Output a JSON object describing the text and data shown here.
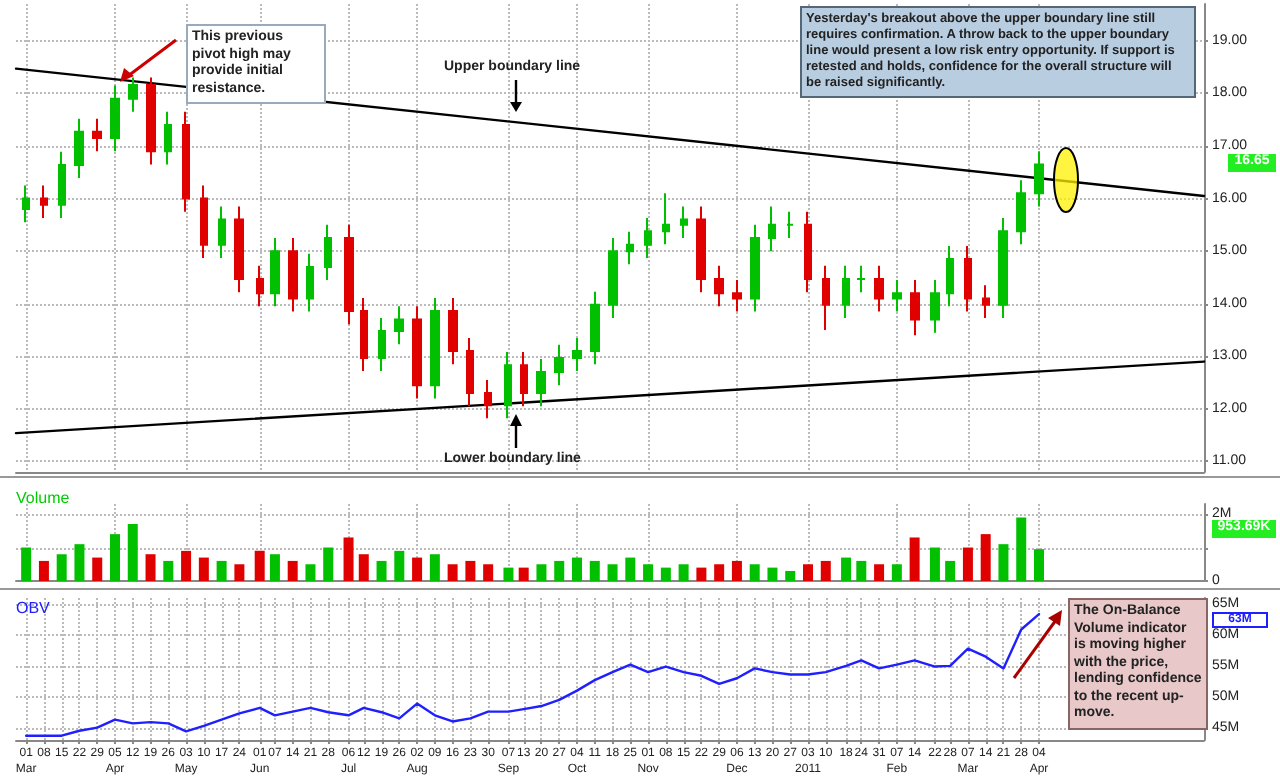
{
  "chart_data": [
    {
      "type": "candlestick",
      "grid": true,
      "tick_labels": "y",
      "line_style": "solid",
      "xlim": [
        "2010-02-25",
        "2011-06-08"
      ],
      "xticks": [
        {
          "value": "2010-03-01",
          "label": null
        },
        {
          "value": "2010-04-05",
          "label": null
        },
        {
          "value": "2010-05-03",
          "label": null
        },
        {
          "value": "2010-06-01",
          "label": null
        },
        {
          "value": "2010-07-06",
          "label": null
        },
        {
          "value": "2010-08-02",
          "label": null
        },
        {
          "value": "2010-09-07",
          "label": null
        },
        {
          "value": "2010-10-04",
          "label": null
        },
        {
          "value": "2010-11-01",
          "label": null
        },
        {
          "value": "2010-12-06",
          "label": null
        },
        {
          "value": "2011-01-03",
          "label": null
        },
        {
          "value": "2011-02-07",
          "label": null
        },
        {
          "value": "2011-03-07",
          "label": null
        },
        {
          "value": "2011-04-04",
          "label": null
        }
      ],
      "ylim": [
        10.8,
        19.7
      ],
      "yticks": [
        {
          "value": 11,
          "label": "11.00"
        },
        {
          "value": 12,
          "label": "12.00"
        },
        {
          "value": 13,
          "label": "13.00"
        },
        {
          "value": 14,
          "label": "14.00"
        },
        {
          "value": 15,
          "label": "15.00"
        },
        {
          "value": 16,
          "label": "16.00"
        },
        {
          "value": 17,
          "label": "17.00"
        },
        {
          "value": 18,
          "label": "18.00"
        },
        {
          "value": 19,
          "label": "19.00"
        }
      ],
      "series": [
        {
          "type": "candlestick",
          "x": [
            "2010-03-01",
            "2010-03-08",
            "2010-03-15",
            "2010-03-22",
            "2010-03-29",
            "2010-04-05",
            "2010-04-12",
            "2010-04-19",
            "2010-04-26",
            "2010-05-03",
            "2010-05-10",
            "2010-05-17",
            "2010-05-24",
            "2010-06-01",
            "2010-06-07",
            "2010-06-14",
            "2010-06-21",
            "2010-06-28",
            "2010-07-06",
            "2010-07-12",
            "2010-07-19",
            "2010-07-26",
            "2010-08-02",
            "2010-08-09",
            "2010-08-16",
            "2010-08-23",
            "2010-08-30",
            "2010-09-07",
            "2010-09-13",
            "2010-09-20",
            "2010-09-27",
            "2010-10-04",
            "2010-10-11",
            "2010-10-18",
            "2010-10-25",
            "2010-11-01",
            "2010-11-08",
            "2010-11-15",
            "2010-11-22",
            "2010-11-29",
            "2010-12-06",
            "2010-12-13",
            "2010-12-20",
            "2010-12-27",
            "2011-01-03",
            "2011-01-10",
            "2011-01-18",
            "2011-01-24",
            "2011-01-31",
            "2011-02-07",
            "2011-02-14",
            "2011-02-22",
            "2011-02-28",
            "2011-03-07",
            "2011-03-14",
            "2011-03-21",
            "2011-03-28",
            "2011-04-04"
          ],
          "ohlc": [
            [
              15.8,
              16.25,
              15.55,
              16.0
            ],
            [
              16.0,
              16.25,
              15.63,
              15.88
            ],
            [
              15.88,
              16.89,
              15.63,
              16.64
            ],
            [
              16.64,
              17.52,
              16.39,
              17.27
            ],
            [
              17.27,
              17.52,
              16.9,
              17.15
            ],
            [
              17.15,
              18.15,
              16.9,
              17.9
            ],
            [
              17.9,
              18.3,
              17.65,
              18.16
            ],
            [
              18.16,
              18.3,
              16.65,
              16.9
            ],
            [
              16.9,
              17.65,
              16.65,
              17.4
            ],
            [
              17.4,
              17.65,
              15.75,
              16.0
            ],
            [
              16.0,
              16.25,
              14.87,
              15.12
            ],
            [
              15.12,
              15.85,
              14.87,
              15.6
            ],
            [
              15.6,
              15.85,
              14.22,
              14.47
            ],
            [
              14.47,
              14.72,
              13.95,
              14.2
            ],
            [
              14.2,
              15.25,
              13.95,
              15.0
            ],
            [
              15.0,
              15.25,
              13.85,
              14.1
            ],
            [
              14.1,
              14.95,
              13.85,
              14.7
            ],
            [
              14.7,
              15.5,
              14.45,
              15.25
            ],
            [
              15.25,
              15.5,
              13.61,
              13.86
            ],
            [
              13.86,
              14.11,
              12.72,
              12.97
            ],
            [
              12.97,
              13.73,
              12.72,
              13.48
            ],
            [
              13.48,
              13.95,
              13.23,
              13.7
            ],
            [
              13.7,
              13.95,
              12.2,
              12.45
            ],
            [
              12.45,
              14.11,
              12.2,
              13.86
            ],
            [
              13.86,
              14.11,
              12.85,
              13.1
            ],
            [
              13.1,
              13.35,
              12.05,
              12.3
            ],
            [
              12.3,
              12.55,
              11.82,
              12.07
            ],
            [
              12.07,
              13.08,
              11.82,
              12.83
            ],
            [
              12.83,
              13.08,
              12.05,
              12.3
            ],
            [
              12.3,
              12.95,
              12.05,
              12.7
            ],
            [
              12.7,
              13.22,
              12.45,
              12.97
            ],
            [
              12.97,
              13.35,
              12.72,
              13.1
            ],
            [
              13.1,
              14.23,
              12.85,
              13.98
            ],
            [
              13.98,
              15.25,
              13.73,
              15.0
            ],
            [
              15.0,
              15.37,
              14.75,
              15.12
            ],
            [
              15.12,
              15.63,
              14.87,
              15.38
            ],
            [
              15.38,
              16.1,
              15.13,
              15.5
            ],
            [
              15.5,
              15.85,
              15.25,
              15.6
            ],
            [
              15.6,
              15.85,
              14.22,
              14.47
            ],
            [
              14.47,
              14.72,
              13.95,
              14.2
            ],
            [
              14.2,
              14.45,
              13.85,
              14.1
            ],
            [
              14.1,
              15.5,
              13.85,
              15.25
            ],
            [
              15.25,
              15.85,
              15.0,
              15.5
            ],
            [
              15.5,
              15.75,
              15.25,
              15.5
            ],
            [
              15.5,
              15.75,
              14.22,
              14.47
            ],
            [
              14.47,
              14.72,
              13.5,
              13.98
            ],
            [
              13.98,
              14.72,
              13.73,
              14.47
            ],
            [
              14.47,
              14.72,
              14.22,
              14.47
            ],
            [
              14.47,
              14.72,
              13.85,
              14.1
            ],
            [
              14.1,
              14.45,
              13.85,
              14.2
            ],
            [
              14.2,
              14.45,
              13.4,
              13.7
            ],
            [
              13.7,
              14.45,
              13.45,
              14.2
            ],
            [
              14.2,
              15.1,
              13.95,
              14.85
            ],
            [
              14.85,
              15.1,
              13.85,
              14.1
            ],
            [
              14.1,
              14.35,
              13.73,
              13.98
            ],
            [
              13.98,
              15.63,
              13.73,
              15.38
            ],
            [
              15.38,
              16.35,
              15.13,
              16.1
            ],
            [
              16.1,
              16.9,
              15.85,
              16.65
            ]
          ],
          "colors": [
            "#00c000",
            "#e00000",
            "#00c000",
            "#00c000",
            "#e00000",
            "#00c000",
            "#00c000",
            "#e00000",
            "#00c000",
            "#e00000",
            "#e00000",
            "#00c000",
            "#e00000",
            "#e00000",
            "#00c000",
            "#e00000",
            "#00c000",
            "#00c000",
            "#e00000",
            "#e00000",
            "#00c000",
            "#00c000",
            "#e00000",
            "#00c000",
            "#e00000",
            "#e00000",
            "#e00000",
            "#00c000",
            "#e00000",
            "#00c000",
            "#00c000",
            "#00c000",
            "#00c000",
            "#00c000",
            "#00c000",
            "#00c000",
            "#00c000",
            "#00c000",
            "#e00000",
            "#e00000",
            "#e00000",
            "#00c000",
            "#00c000",
            "#00c000",
            "#e00000",
            "#e00000",
            "#00c000",
            "#00c000",
            "#e00000",
            "#00c000",
            "#e00000",
            "#00c000",
            "#00c000",
            "#e00000",
            "#e00000",
            "#00c000",
            "#00c000",
            "#00c000"
          ]
        },
        {
          "type": "line",
          "color": "#000000",
          "x": [
            "2010-02-25",
            "2011-06-08"
          ],
          "values": [
            18.47,
            16.05
          ]
        },
        {
          "type": "line",
          "color": "#000000",
          "x": [
            "2010-02-25",
            "2011-06-08"
          ],
          "values": [
            11.54,
            12.9
          ]
        }
      ],
      "annotations": [
        "This previous pivot high may provide initial resistance.",
        "Upper boundary line",
        "Lower boundary line",
        "Yesterday's breakout above the upper boundary line still requires confirmation.  A throw back to the upper boundary line would present a low risk entry opportunity. If support is retested and holds, confidence for the overall structure will be raised significantly.",
        "16.65"
      ]
    },
    {
      "type": "bar",
      "title": "Volume",
      "grid": true,
      "tick_labels": "y",
      "xlim": [
        "2010-02-25",
        "2011-06-08"
      ],
      "xticks": [
        {
          "value": "2010-03-01",
          "label": null
        },
        {
          "value": "2010-04-05",
          "label": null
        },
        {
          "value": "2010-05-03",
          "label": null
        },
        {
          "value": "2010-06-01",
          "label": null
        },
        {
          "value": "2010-07-06",
          "label": null
        },
        {
          "value": "2010-08-02",
          "label": null
        },
        {
          "value": "2010-09-07",
          "label": null
        },
        {
          "value": "2010-10-04",
          "label": null
        },
        {
          "value": "2010-11-01",
          "label": null
        },
        {
          "value": "2010-12-06",
          "label": null
        },
        {
          "value": "2011-01-03",
          "label": null
        },
        {
          "value": "2011-02-07",
          "label": null
        },
        {
          "value": "2011-03-07",
          "label": null
        },
        {
          "value": "2011-04-04",
          "label": null
        }
      ],
      "ylim": [
        0,
        2.3
      ],
      "yticks": [
        0,
        {
          "value": 1,
          "label": null
        },
        {
          "value": 2,
          "label": "2M"
        }
      ],
      "x": [
        "2010-03-01",
        "2010-03-08",
        "2010-03-15",
        "2010-03-22",
        "2010-03-29",
        "2010-04-05",
        "2010-04-12",
        "2010-04-19",
        "2010-04-26",
        "2010-05-03",
        "2010-05-10",
        "2010-05-17",
        "2010-05-24",
        "2010-06-01",
        "2010-06-07",
        "2010-06-14",
        "2010-06-21",
        "2010-06-28",
        "2010-07-06",
        "2010-07-12",
        "2010-07-19",
        "2010-07-26",
        "2010-08-02",
        "2010-08-09",
        "2010-08-16",
        "2010-08-23",
        "2010-08-30",
        "2010-09-07",
        "2010-09-13",
        "2010-09-20",
        "2010-09-27",
        "2010-10-04",
        "2010-10-11",
        "2010-10-18",
        "2010-10-25",
        "2010-11-01",
        "2010-11-08",
        "2010-11-15",
        "2010-11-22",
        "2010-11-29",
        "2010-12-06",
        "2010-12-13",
        "2010-12-20",
        "2010-12-27",
        "2011-01-03",
        "2011-01-10",
        "2011-01-18",
        "2011-01-24",
        "2011-01-31",
        "2011-02-07",
        "2011-02-14",
        "2011-02-22",
        "2011-02-28",
        "2011-03-07",
        "2011-03-14",
        "2011-03-21",
        "2011-03-28",
        "2011-04-04"
      ],
      "values": [
        1.0,
        0.6,
        0.8,
        1.1,
        0.7,
        1.4,
        1.7,
        0.8,
        0.6,
        0.9,
        0.7,
        0.6,
        0.5,
        0.9,
        0.8,
        0.6,
        0.5,
        1.0,
        1.3,
        0.8,
        0.6,
        0.9,
        0.7,
        0.8,
        0.5,
        0.6,
        0.5,
        0.4,
        0.4,
        0.5,
        0.6,
        0.7,
        0.6,
        0.5,
        0.7,
        0.5,
        0.4,
        0.5,
        0.4,
        0.5,
        0.6,
        0.5,
        0.4,
        0.3,
        0.5,
        0.6,
        0.7,
        0.6,
        0.5,
        0.5,
        1.3,
        1.0,
        0.6,
        1.0,
        1.4,
        1.1,
        1.9,
        0.95
      ],
      "colors": [
        "#00c000",
        "#e00000",
        "#00c000",
        "#00c000",
        "#e00000",
        "#00c000",
        "#00c000",
        "#e00000",
        "#00c000",
        "#e00000",
        "#e00000",
        "#00c000",
        "#e00000",
        "#e00000",
        "#00c000",
        "#e00000",
        "#00c000",
        "#00c000",
        "#e00000",
        "#e00000",
        "#00c000",
        "#00c000",
        "#e00000",
        "#00c000",
        "#e00000",
        "#e00000",
        "#e00000",
        "#00c000",
        "#e00000",
        "#00c000",
        "#00c000",
        "#00c000",
        "#00c000",
        "#00c000",
        "#00c000",
        "#00c000",
        "#00c000",
        "#00c000",
        "#e00000",
        "#e00000",
        "#e00000",
        "#00c000",
        "#00c000",
        "#00c000",
        "#e00000",
        "#e00000",
        "#00c000",
        "#00c000",
        "#e00000",
        "#00c000",
        "#e00000",
        "#00c000",
        "#00c000",
        "#e00000",
        "#e00000",
        "#00c000",
        "#00c000",
        "#00c000"
      ],
      "annotations": [
        "953.69K"
      ]
    },
    {
      "type": "line",
      "title": "OBV",
      "grid": true,
      "marker": "none",
      "line_style": "solid",
      "color": "#2020ff",
      "xlim": [
        "2010-02-25",
        "2011-06-08"
      ],
      "xticks": [
        {
          "value": "2010-03-01",
          "label": "01\nMar"
        },
        {
          "value": "2010-03-08",
          "label": "08"
        },
        {
          "value": "2010-03-15",
          "label": "15"
        },
        {
          "value": "2010-03-22",
          "label": "22"
        },
        {
          "value": "2010-03-29",
          "label": "29"
        },
        {
          "value": "2010-04-05",
          "label": "05\nApr"
        },
        {
          "value": "2010-04-12",
          "label": "12"
        },
        {
          "value": "2010-04-19",
          "label": "19"
        },
        {
          "value": "2010-04-26",
          "label": "26"
        },
        {
          "value": "2010-05-03",
          "label": "03\nMay"
        },
        {
          "value": "2010-05-10",
          "label": "10"
        },
        {
          "value": "2010-05-17",
          "label": "17"
        },
        {
          "value": "2010-05-24",
          "label": "24"
        },
        {
          "value": "2010-06-01",
          "label": "01\nJun"
        },
        {
          "value": "2010-06-07",
          "label": "07"
        },
        {
          "value": "2010-06-14",
          "label": "14"
        },
        {
          "value": "2010-06-21",
          "label": "21"
        },
        {
          "value": "2010-06-28",
          "label": "28"
        },
        {
          "value": "2010-07-06",
          "label": "06\nJul"
        },
        {
          "value": "2010-07-12",
          "label": "12"
        },
        {
          "value": "2010-07-19",
          "label": "19"
        },
        {
          "value": "2010-07-26",
          "label": "26"
        },
        {
          "value": "2010-08-02",
          "label": "02\nAug"
        },
        {
          "value": "2010-08-09",
          "label": "09"
        },
        {
          "value": "2010-08-16",
          "label": "16"
        },
        {
          "value": "2010-08-23",
          "label": "23"
        },
        {
          "value": "2010-08-30",
          "label": "30"
        },
        {
          "value": "2010-09-07",
          "label": "07\nSep"
        },
        {
          "value": "2010-09-13",
          "label": "13"
        },
        {
          "value": "2010-09-20",
          "label": "20"
        },
        {
          "value": "2010-09-27",
          "label": "27"
        },
        {
          "value": "2010-10-04",
          "label": "04\nOct"
        },
        {
          "value": "2010-10-11",
          "label": "11"
        },
        {
          "value": "2010-10-18",
          "label": "18"
        },
        {
          "value": "2010-10-25",
          "label": "25"
        },
        {
          "value": "2010-11-01",
          "label": "01\nNov"
        },
        {
          "value": "2010-11-08",
          "label": "08"
        },
        {
          "value": "2010-11-15",
          "label": "15"
        },
        {
          "value": "2010-11-22",
          "label": "22"
        },
        {
          "value": "2010-11-29",
          "label": "29"
        },
        {
          "value": "2010-12-06",
          "label": "06\nDec"
        },
        {
          "value": "2010-12-13",
          "label": "13"
        },
        {
          "value": "2010-12-20",
          "label": "20"
        },
        {
          "value": "2010-12-27",
          "label": "27"
        },
        {
          "value": "2011-01-03",
          "label": "03\n2011"
        },
        {
          "value": "2011-01-10",
          "label": "10"
        },
        {
          "value": "2011-01-18",
          "label": "18"
        },
        {
          "value": "2011-01-24",
          "label": "24"
        },
        {
          "value": "2011-01-31",
          "label": "31"
        },
        {
          "value": "2011-02-07",
          "label": "07\nFeb"
        },
        {
          "value": "2011-02-14",
          "label": "14"
        },
        {
          "value": "2011-02-22",
          "label": "22"
        },
        {
          "value": "2011-02-28",
          "label": "28"
        },
        {
          "value": "2011-03-07",
          "label": "07\nMar"
        },
        {
          "value": "2011-03-14",
          "label": "14"
        },
        {
          "value": "2011-03-21",
          "label": "21"
        },
        {
          "value": "2011-03-28",
          "label": "28"
        },
        {
          "value": "2011-04-04",
          "label": "04\nApr"
        }
      ],
      "ylim": [
        43,
        66
      ],
      "yticks": [
        {
          "value": 45,
          "label": "45M"
        },
        {
          "value": 50,
          "label": "50M"
        },
        {
          "value": 55,
          "label": "55M"
        },
        {
          "value": 60,
          "label": "60M"
        },
        {
          "value": 65,
          "label": "65M"
        }
      ],
      "x": [
        "2010-03-01",
        "2010-03-08",
        "2010-03-15",
        "2010-03-22",
        "2010-03-29",
        "2010-04-05",
        "2010-04-12",
        "2010-04-19",
        "2010-04-26",
        "2010-05-03",
        "2010-05-10",
        "2010-05-17",
        "2010-05-24",
        "2010-06-01",
        "2010-06-07",
        "2010-06-14",
        "2010-06-21",
        "2010-06-28",
        "2010-07-06",
        "2010-07-12",
        "2010-07-19",
        "2010-07-26",
        "2010-08-02",
        "2010-08-09",
        "2010-08-16",
        "2010-08-23",
        "2010-08-30",
        "2010-09-07",
        "2010-09-13",
        "2010-09-20",
        "2010-09-27",
        "2010-10-04",
        "2010-10-11",
        "2010-10-18",
        "2010-10-25",
        "2010-11-01",
        "2010-11-08",
        "2010-11-15",
        "2010-11-22",
        "2010-11-29",
        "2010-12-06",
        "2010-12-13",
        "2010-12-20",
        "2010-12-27",
        "2011-01-03",
        "2011-01-10",
        "2011-01-18",
        "2011-01-24",
        "2011-01-31",
        "2011-02-07",
        "2011-02-14",
        "2011-02-22",
        "2011-02-28",
        "2011-03-07",
        "2011-03-14",
        "2011-03-21",
        "2011-03-28",
        "2011-04-04"
      ],
      "values": [
        43.7,
        43.7,
        43.7,
        44.5,
        45.0,
        46.3,
        45.7,
        45.9,
        45.7,
        44.4,
        45.3,
        46.3,
        47.3,
        48.2,
        47.0,
        47.6,
        48.2,
        47.5,
        47.0,
        48.2,
        47.5,
        46.5,
        48.9,
        47.0,
        46.0,
        46.5,
        47.6,
        47.6,
        48.0,
        48.5,
        49.5,
        51.0,
        52.7,
        54.0,
        55.2,
        54.0,
        54.9,
        54.0,
        53.4,
        52.1,
        53.0,
        54.6,
        54.0,
        53.6,
        53.6,
        54.0,
        55.0,
        55.9,
        54.6,
        55.2,
        55.9,
        54.9,
        55.0,
        57.8,
        56.5,
        54.6,
        60.9,
        63.4
      ],
      "annotations": [
        "63M",
        "The On-Balance Volume indicator is moving higher with the price, lending confidence to the recent up-move."
      ]
    }
  ]
}
